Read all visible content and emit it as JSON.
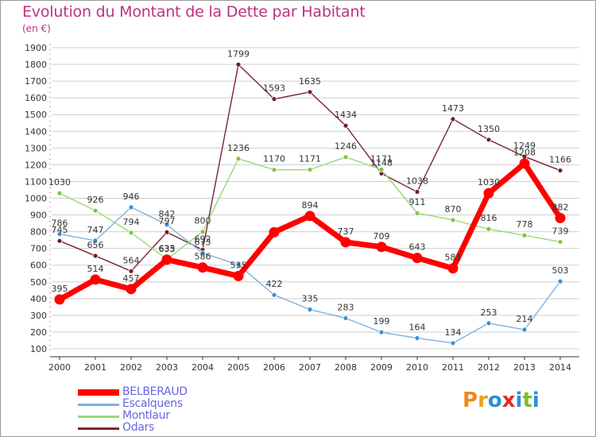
{
  "title": "Evolution du Montant de la Dette par Habitant",
  "subtitle": "(en €)",
  "logo_text": "Proxiti",
  "colors": {
    "title": "#c0307e",
    "legend_text": "#6a63e0",
    "grid": "#cfcfcf",
    "logo": [
      "#f08a1c",
      "#e8a21a",
      "#2a8fd6",
      "#e8282c",
      "#2a8fd6",
      "#7bbf2a",
      "#2a8fd6"
    ]
  },
  "chart_data": {
    "type": "line",
    "x": [
      "2000",
      "2001",
      "2002",
      "2003",
      "2004",
      "2005",
      "2006",
      "2007",
      "2008",
      "2009",
      "2010",
      "2011",
      "2012",
      "2013",
      "2014"
    ],
    "ylim": [
      100,
      1900
    ],
    "yticks": [
      100,
      200,
      300,
      400,
      500,
      600,
      700,
      800,
      900,
      1000,
      1100,
      1200,
      1300,
      1400,
      1500,
      1600,
      1700,
      1800,
      1900
    ],
    "grid": "horizontal",
    "legend_position": "bottom-left",
    "series": [
      {
        "name": "Odars",
        "color": "#7a2430",
        "point_color": "#6e1f2a",
        "width": 1.4,
        "values": [
          745,
          656,
          564,
          797,
          692,
          1799,
          1593,
          1635,
          1434,
          1148,
          1038,
          1473,
          1350,
          1249,
          1166
        ],
        "labels": [
          "745",
          "656",
          "564",
          "797",
          "692",
          "1799",
          "1593",
          "1635",
          "1434",
          "1148",
          "1038",
          "1473",
          "1350",
          "1249",
          "1166"
        ]
      },
      {
        "name": "Montlaur",
        "color": "#9ad872",
        "point_color": "#7cc64a",
        "width": 1.4,
        "values": [
          1030,
          926,
          794,
          635,
          800,
          1236,
          1170,
          1171,
          1246,
          1171,
          911,
          870,
          816,
          778,
          739
        ],
        "labels": [
          "1030",
          "926",
          "794",
          "635",
          "800",
          "1236",
          "1170",
          "1171",
          "1246",
          "1171",
          "911",
          "870",
          "816",
          "778",
          "739"
        ]
      },
      {
        "name": "Escalquens",
        "color": "#7fb0dc",
        "point_color": "#3c8fd0",
        "width": 1.4,
        "values": [
          786,
          747,
          946,
          842,
          673,
          602,
          422,
          335,
          283,
          199,
          164,
          134,
          253,
          214,
          503
        ],
        "labels": [
          "786",
          "747",
          "946",
          "842",
          "673",
          "",
          "422",
          "335",
          "283",
          "199",
          "164",
          "134",
          "253",
          "214",
          "503"
        ]
      },
      {
        "name": "BELBERAUD",
        "color": "#ff0000",
        "point_color": "#ff0000",
        "width": 7,
        "values": [
          395,
          514,
          457,
          633,
          586,
          535,
          797,
          894,
          737,
          709,
          643,
          581,
          1030,
          1208,
          882
        ],
        "labels": [
          "395",
          "514",
          "457",
          "633",
          "586",
          "535",
          "",
          "894",
          "737",
          "709",
          "643",
          "581",
          "1030",
          "1208",
          "882"
        ]
      }
    ],
    "legend_order": [
      "BELBERAUD",
      "Escalquens",
      "Montlaur",
      "Odars"
    ]
  }
}
